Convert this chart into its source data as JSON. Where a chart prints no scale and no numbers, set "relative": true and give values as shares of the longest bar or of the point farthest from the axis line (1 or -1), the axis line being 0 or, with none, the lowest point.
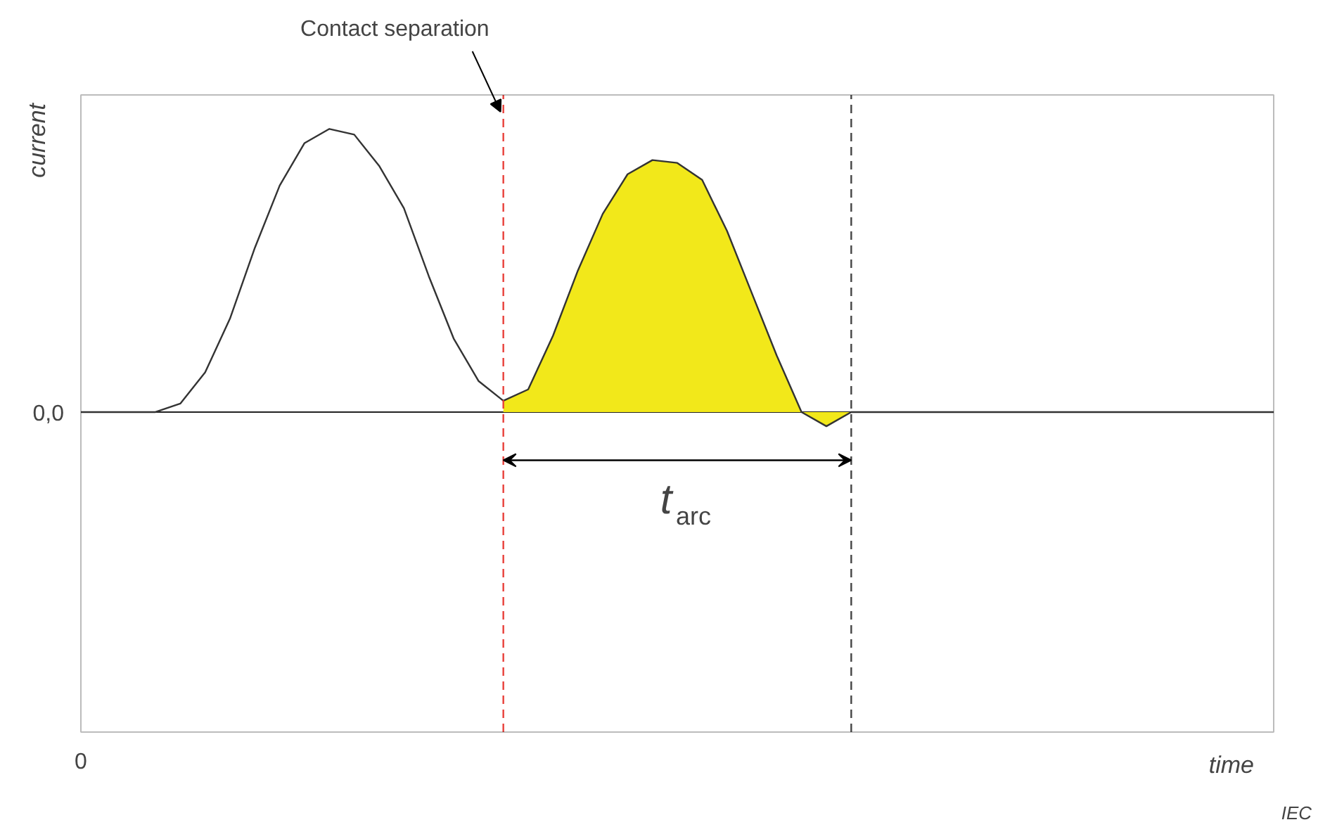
{
  "chart_data": {
    "type": "line",
    "relative": true,
    "ylabel": "current",
    "categories": [
      null,
      null,
      null,
      null,
      null,
      null,
      null,
      null,
      null,
      null,
      null,
      null,
      null,
      null,
      null,
      null,
      null,
      null,
      null,
      null,
      null,
      null,
      null,
      null,
      null,
      null,
      null,
      null,
      null,
      null,
      null,
      null,
      null,
      null,
      null,
      null,
      null,
      null,
      null,
      null,
      null,
      null,
      null,
      null,
      null,
      null,
      null,
      null,
      null
    ],
    "series": [
      {
        "type": "area",
        "color": "#f2e81a",
        "values": [
          null,
          null,
          null,
          null,
          null,
          null,
          null,
          null,
          null,
          null,
          null,
          null,
          null,
          null,
          null,
          null,
          null,
          0.04,
          0.08,
          0.27,
          0.5,
          0.7,
          0.84,
          0.89,
          0.88,
          0.82,
          0.64,
          0.42,
          0.2,
          0.0,
          -0.05,
          0,
          null,
          null,
          null,
          null,
          null,
          null,
          null,
          null,
          null,
          null,
          null,
          null,
          null,
          null,
          null,
          null,
          null
        ]
      },
      {
        "color": "#333333",
        "values": [
          0,
          0,
          0,
          0,
          0.03,
          0.14,
          0.33,
          0.58,
          0.8,
          0.95,
          1.0,
          0.98,
          0.87,
          0.72,
          0.48,
          0.26,
          0.11,
          0.04,
          0.08,
          0.27,
          0.5,
          0.7,
          0.84,
          0.89,
          0.88,
          0.82,
          0.64,
          0.42,
          0.2,
          0.0,
          -0.05,
          0,
          0,
          0,
          0,
          0,
          0,
          0,
          0,
          0,
          0,
          0,
          0,
          0,
          0,
          0,
          0,
          0,
          0
        ]
      }
    ],
    "annotations": [
      "0,0",
      "0",
      "t$_{arc}$",
      "IEC",
      "Contact separation",
      "time"
    ]
  }
}
